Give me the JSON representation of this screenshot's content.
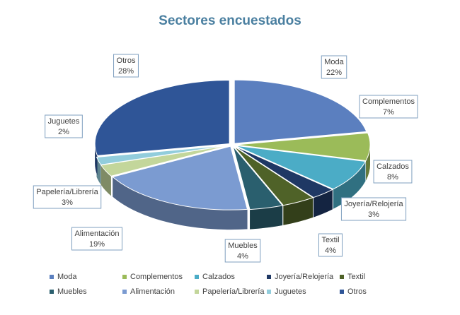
{
  "chart_data": {
    "type": "pie",
    "title": "Sectores encuestados",
    "categories": [
      "Moda",
      "Complementos",
      "Calzados",
      "Joyería/Relojería",
      "Textil",
      "Muebles",
      "Alimentación",
      "Papelería/Librería",
      "Juguetes",
      "Otros"
    ],
    "values": [
      22,
      7,
      8,
      3,
      4,
      4,
      19,
      3,
      2,
      28
    ],
    "value_labels": [
      "22%",
      "7%",
      "8%",
      "3%",
      "4%",
      "4%",
      "19%",
      "3%",
      "2%",
      "28%"
    ],
    "colors": [
      "#5b7fbf",
      "#9bbb59",
      "#4bacc6",
      "#1f3864",
      "#4f6228",
      "#2a5f6e",
      "#7b9bd1",
      "#c3d69b",
      "#92cddc",
      "#2f5597"
    ],
    "legend": "bottom"
  }
}
